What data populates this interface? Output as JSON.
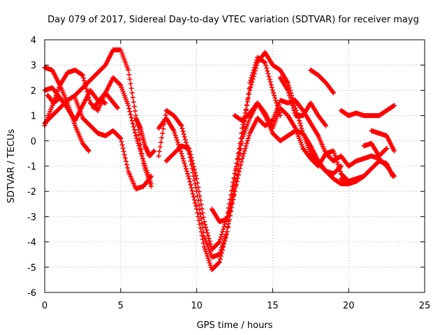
{
  "chart_data": {
    "type": "scatter",
    "title": "Day 079 of 2017, Sidereal Day-to-day VTEC variation (SDTVAR) for receiver mayg",
    "xlabel": "GPS time / hours",
    "ylabel": "SDTVAR / TECUs",
    "xlim": [
      0,
      25
    ],
    "ylim": [
      -6,
      4
    ],
    "x_ticks": [
      "0",
      "5",
      "10",
      "15",
      "20",
      "25"
    ],
    "y_ticks": [
      "-6",
      "-5",
      "-4",
      "-3",
      "-2",
      "-1",
      "0",
      "1",
      "2",
      "3",
      "4"
    ],
    "grid": true,
    "marker": "plus",
    "color": "#ff0000",
    "series": [
      {
        "x": [
          0.0,
          0.5,
          1.0,
          1.5,
          2.0,
          2.5,
          2.9
        ],
        "y": [
          2.9,
          2.8,
          2.2,
          1.5,
          0.6,
          -0.1,
          -0.4
        ]
      },
      {
        "x": [
          0.0,
          0.5,
          1.0,
          1.5,
          2.0,
          2.5,
          3.0,
          3.5,
          4.0,
          4.5,
          5.0,
          5.5,
          6.0,
          6.5,
          7.0
        ],
        "y": [
          0.7,
          1.0,
          1.3,
          1.6,
          1.8,
          2.1,
          2.4,
          2.7,
          3.0,
          3.6,
          3.6,
          2.8,
          1.0,
          -0.9,
          -1.8
        ]
      },
      {
        "x": [
          0.0,
          0.5,
          1.0,
          1.5,
          2.0,
          2.5,
          3.0,
          3.5,
          4.0,
          4.5,
          5.0,
          5.5,
          6.0,
          6.5,
          7.0
        ],
        "y": [
          0.6,
          1.4,
          2.2,
          2.7,
          2.8,
          2.6,
          1.5,
          1.2,
          1.9,
          2.5,
          2.2,
          1.4,
          0.2,
          -0.8,
          -1.7
        ]
      },
      {
        "x": [
          0.0,
          0.5,
          1.0,
          1.5,
          2.0,
          2.5,
          3.0,
          3.5,
          4.0
        ],
        "y": [
          2.0,
          2.1,
          1.7,
          1.3,
          0.8,
          1.4,
          2.0,
          1.6,
          1.5
        ]
      },
      {
        "x": [
          2.0,
          2.5,
          3.0,
          3.5,
          4.0,
          4.5,
          5.0,
          5.5,
          6.0,
          6.5,
          7.0
        ],
        "y": [
          1.7,
          0.9,
          0.6,
          0.3,
          0.2,
          0.4,
          0.1,
          -1.2,
          -1.9,
          -1.8,
          -1.4
        ]
      },
      {
        "x": [
          0.2,
          0.6,
          1.0,
          1.4,
          1.8
        ],
        "y": [
          1.8,
          1.5,
          1.7,
          1.4,
          1.0
        ]
      },
      {
        "x": [
          3.2,
          3.6,
          4.0,
          4.4,
          4.8
        ],
        "y": [
          1.3,
          1.6,
          1.9,
          1.6,
          1.3
        ]
      },
      {
        "x": [
          6.0,
          6.3,
          6.6,
          6.9,
          7.2
        ],
        "y": [
          0.9,
          0.5,
          -0.2,
          -0.6,
          -0.4
        ]
      },
      {
        "x": [
          7.5,
          8.0,
          8.5,
          9.0,
          9.5,
          10.0,
          10.5,
          11.0,
          11.5,
          12.0,
          12.5,
          13.0,
          13.5,
          14.0,
          14.5,
          15.0,
          15.5
        ],
        "y": [
          -0.6,
          1.2,
          1.0,
          0.6,
          -0.5,
          -2.0,
          -3.8,
          -4.6,
          -4.5,
          -3.6,
          -2.0,
          0.1,
          2.3,
          3.3,
          3.1,
          2.0,
          1.0
        ]
      },
      {
        "x": [
          7.5,
          8.0,
          8.5,
          9.0,
          9.5,
          10.0,
          10.5,
          11.0,
          11.5,
          12.0,
          12.5,
          13.0,
          13.5,
          14.0,
          14.5,
          15.0,
          15.5,
          16.0,
          16.5,
          17.0,
          17.5,
          18.0,
          18.5,
          19.0,
          19.5,
          20.0
        ],
        "y": [
          0.5,
          0.9,
          0.4,
          -0.5,
          -1.5,
          -2.7,
          -4.2,
          -5.1,
          -4.8,
          -3.6,
          -1.5,
          0.5,
          2.0,
          3.1,
          3.5,
          3.0,
          2.8,
          2.3,
          1.3,
          0.3,
          -0.5,
          -0.9,
          -1.2,
          -1.5,
          -1.7,
          -1.7
        ]
      },
      {
        "x": [
          8.0,
          8.5,
          9.0,
          9.5,
          10.0,
          10.5,
          11.0,
          11.5,
          12.0,
          12.5,
          13.0,
          13.5,
          14.0,
          14.5,
          15.0,
          15.5,
          16.0,
          16.5,
          17.0,
          17.5,
          18.0,
          18.5,
          19.0,
          19.5
        ],
        "y": [
          -0.8,
          -0.5,
          -0.2,
          -0.3,
          -1.5,
          -3.2,
          -4.3,
          -4.0,
          -3.0,
          -1.3,
          0.1,
          0.9,
          1.5,
          1.0,
          0.3,
          0.0,
          0.2,
          0.4,
          0.3,
          -0.2,
          -0.8,
          -1.2,
          -1.3,
          -1.0
        ]
      },
      {
        "x": [
          11.0,
          11.5,
          12.0,
          12.5,
          13.0,
          13.5,
          14.0,
          14.5,
          15.0,
          15.5,
          16.0,
          16.5,
          17.0,
          17.5,
          18.0,
          18.5,
          19.0
        ],
        "y": [
          -2.7,
          -3.2,
          -3.1,
          -2.0,
          -0.7,
          0.3,
          0.9,
          0.6,
          0.8,
          1.6,
          1.5,
          1.6,
          1.2,
          0.7,
          0.2,
          -0.5,
          -0.8
        ]
      },
      {
        "x": [
          12.5,
          13.0,
          13.5,
          14.0,
          14.5,
          15.0,
          15.5,
          16.0,
          16.5,
          17.0,
          17.5,
          18.0,
          18.5,
          19.0,
          19.5,
          20.0,
          20.5,
          21.0
        ],
        "y": [
          1.0,
          0.8,
          1.1,
          1.5,
          1.1,
          0.5,
          1.3,
          1.0,
          0.5,
          -0.3,
          -0.7,
          -1.0,
          -0.5,
          -0.4,
          -1.3,
          -1.6,
          -1.5,
          -1.4
        ]
      },
      {
        "x": [
          15.5,
          16.0,
          16.5,
          17.0,
          17.5,
          18.0,
          18.5
        ],
        "y": [
          2.5,
          2.0,
          1.0,
          1.0,
          1.5,
          1.0,
          0.6
        ]
      },
      {
        "x": [
          17.5,
          18.0,
          18.5,
          19.0
        ],
        "y": [
          2.8,
          2.6,
          2.3,
          1.9
        ]
      },
      {
        "x": [
          19.5,
          20.0,
          20.5,
          21.0,
          21.5,
          22.0,
          22.5,
          23.0
        ],
        "y": [
          1.2,
          1.0,
          1.1,
          1.0,
          1.0,
          1.0,
          1.2,
          1.4
        ]
      },
      {
        "x": [
          19.0,
          19.5,
          20.0,
          20.5,
          21.0,
          21.5,
          22.0,
          22.5,
          23.0
        ],
        "y": [
          -0.8,
          -0.6,
          -1.0,
          -0.8,
          -0.7,
          -0.6,
          -0.7,
          -1.0,
          -1.4
        ]
      },
      {
        "x": [
          19.5,
          20.0,
          20.5,
          21.0,
          21.5,
          22.0,
          22.5,
          22.9
        ],
        "y": [
          -1.5,
          -1.7,
          -1.6,
          -1.4,
          -1.1,
          -0.8,
          -0.9,
          -1.4
        ]
      },
      {
        "x": [
          21.5,
          22.0,
          22.5,
          23.0
        ],
        "y": [
          0.4,
          0.3,
          0.2,
          -0.4
        ]
      },
      {
        "x": [
          21.0,
          21.5,
          22.0,
          22.5
        ],
        "y": [
          -0.2,
          -0.1,
          -0.6,
          -0.3
        ]
      }
    ]
  }
}
